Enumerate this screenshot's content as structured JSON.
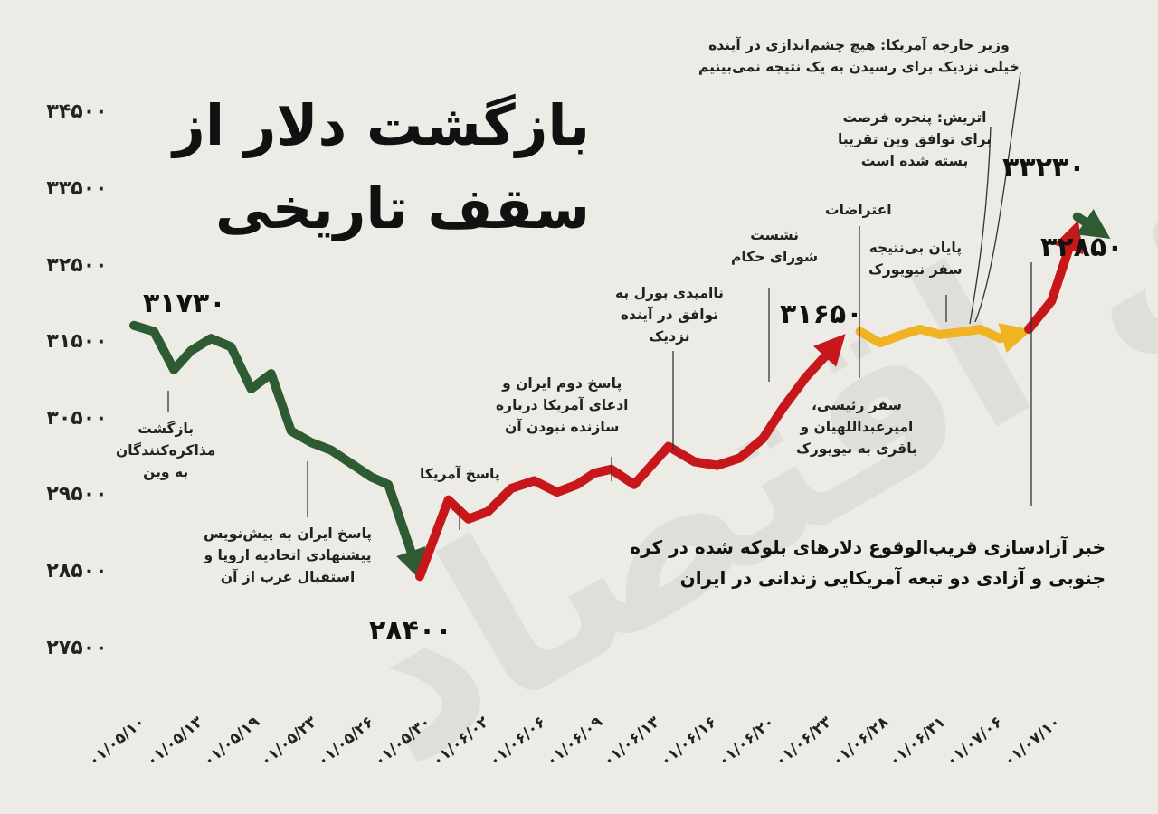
{
  "title_line1": "بازگشت دلار از",
  "title_line2": "سقف تاریخی",
  "watermark": "دنیای اقتصاد",
  "chart_data": {
    "type": "line",
    "y_ticks": [
      "۲۷۵۰۰",
      "۲۸۵۰۰",
      "۲۹۵۰۰",
      "۳۰۵۰۰",
      "۳۱۵۰۰",
      "۳۲۵۰۰",
      "۳۳۵۰۰",
      "۳۴۵۰۰"
    ],
    "y_tick_values": [
      27500,
      28500,
      29500,
      30500,
      31500,
      32500,
      33500,
      34500
    ],
    "ylim": [
      27000,
      34800
    ],
    "x_ticks": [
      "۰۱/۰۵/۱۰",
      "۰۱/۰۵/۱۳",
      "۰۱/۰۵/۱۹",
      "۰۱/۰۵/۲۳",
      "۰۱/۰۵/۲۶",
      "۰۱/۰۵/۳۰",
      "۰۱/۰۶/۰۲",
      "۰۱/۰۶/۰۶",
      "۰۱/۰۶/۰۹",
      "۰۱/۰۶/۱۳",
      "۰۱/۰۶/۱۶",
      "۰۱/۰۶/۲۰",
      "۰۱/۰۶/۲۳",
      "۰۱/۰۶/۲۸",
      "۰۱/۰۶/۳۱",
      "۰۱/۰۷/۰۶",
      "۰۱/۰۷/۱۰"
    ],
    "series": [
      {
        "color": "#2e5b31",
        "points": [
          [
            0,
            31730
          ],
          [
            0.35,
            31650
          ],
          [
            0.7,
            31150
          ],
          [
            1.0,
            31400
          ],
          [
            1.35,
            31560
          ],
          [
            1.7,
            31450
          ],
          [
            2.05,
            30900
          ],
          [
            2.4,
            31100
          ],
          [
            2.75,
            30350
          ],
          [
            3.1,
            30200
          ],
          [
            3.45,
            30100
          ],
          [
            3.75,
            29950
          ],
          [
            4.15,
            29750
          ],
          [
            4.45,
            29650
          ],
          [
            4.95,
            28550
          ]
        ],
        "arrow": true
      },
      {
        "color": "#c8171b",
        "points": [
          [
            5.0,
            28450
          ],
          [
            5.5,
            29450
          ],
          [
            5.85,
            29200
          ],
          [
            6.2,
            29300
          ],
          [
            6.6,
            29600
          ],
          [
            7.0,
            29700
          ],
          [
            7.4,
            29550
          ],
          [
            7.75,
            29650
          ],
          [
            8.05,
            29800
          ],
          [
            8.35,
            29850
          ],
          [
            8.75,
            29650
          ],
          [
            9.35,
            30150
          ],
          [
            9.8,
            29950
          ],
          [
            10.2,
            29900
          ],
          [
            10.6,
            30000
          ],
          [
            11.0,
            30250
          ],
          [
            11.35,
            30650
          ],
          [
            11.75,
            31050
          ],
          [
            12.3,
            31500
          ]
        ],
        "arrow": true
      },
      {
        "color": "#f0b324",
        "points": [
          [
            12.7,
            31650
          ],
          [
            13.05,
            31500
          ],
          [
            13.4,
            31600
          ],
          [
            13.75,
            31680
          ],
          [
            14.1,
            31610
          ],
          [
            14.45,
            31640
          ],
          [
            14.8,
            31680
          ],
          [
            15.15,
            31560
          ],
          [
            15.5,
            31630
          ]
        ],
        "arrow": true
      },
      {
        "color": "#c8171b",
        "points": [
          [
            15.65,
            31680
          ],
          [
            16.05,
            32050
          ],
          [
            16.45,
            32950
          ]
        ],
        "arrow": true
      },
      {
        "color": "#2e5b31",
        "points": [
          [
            16.5,
            33150
          ],
          [
            16.9,
            32950
          ]
        ],
        "arrow": true
      }
    ],
    "annotations": [
      {
        "text": "۳۱۷۳۰"
      },
      {
        "text": "۲۸۴۰۰"
      },
      {
        "text": "۳۱۶۵۰"
      },
      {
        "text": "۳۳۲۳۰"
      },
      {
        "text": "۳۲۸۵۰"
      }
    ]
  },
  "events": [
    {
      "lines": [
        "بازگشت",
        "مذاکره‌کنندگان",
        "به وین"
      ]
    },
    {
      "lines": [
        "پاسخ ایران به پیش‌نویس",
        "پیشنهادی اتحادیه اروپا و",
        "استقبال غرب از آن"
      ]
    },
    {
      "lines": [
        "پاسخ آمریکا"
      ]
    },
    {
      "lines": [
        "پاسخ دوم ایران و",
        "ادعای آمریکا درباره",
        "سازنده نبودن آن"
      ]
    },
    {
      "lines": [
        "ناامیدی بورل به",
        "توافق در آینده",
        "نزدیک"
      ]
    },
    {
      "lines": [
        "نشست",
        "شورای حکام"
      ]
    },
    {
      "lines": [
        "اعتراضات"
      ]
    },
    {
      "lines": [
        "سفر رئیسی،",
        "امیرعبداللهیان و",
        "باقری به نیویورک"
      ]
    },
    {
      "lines": [
        "پایان بی‌نتیجه",
        "سفر نیویورک"
      ]
    },
    {
      "lines": [
        "اتریش: پنجره فرصت",
        "برای توافق وین تقریبا",
        "بسته شده است"
      ]
    },
    {
      "lines": [
        "وزیر خارجه آمریکا: هیچ چشم‌اندازی در آینده",
        "خیلی نزدیک برای رسیدن به یک نتیجه نمی‌بینیم"
      ]
    }
  ],
  "news": [
    "خبر آزادسازی قریب‌الوقوع دلارهای بلوکه شده در کره",
    "جنوبی و آزادی دو تبعه آمریکایی زندانی در ایران"
  ]
}
